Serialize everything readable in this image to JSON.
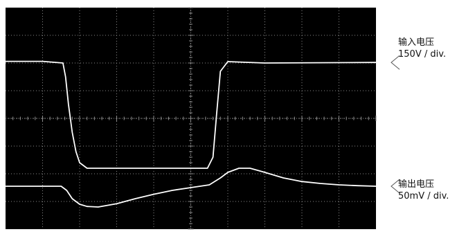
{
  "colors": {
    "screen": "#000000",
    "trace": "#ffffff",
    "grid": "#8c8c8c",
    "label_text": "#111111"
  },
  "chart_data": {
    "type": "line",
    "grid": true,
    "divisions": {
      "x": 10,
      "y": 8
    },
    "x_unit": "div",
    "y_unit": "div",
    "xlim": [
      0,
      10
    ],
    "ylim": [
      0,
      8
    ],
    "series": [
      {
        "name": "输入电压",
        "scale": "150V / div.",
        "x": [
          0,
          1.0,
          1.55,
          1.62,
          1.7,
          1.8,
          1.9,
          2.0,
          2.2,
          5.2,
          5.45,
          5.6,
          5.7,
          5.8,
          6.0,
          7.0,
          10
        ],
        "y": [
          6.06,
          6.06,
          6.0,
          5.5,
          4.5,
          3.5,
          2.8,
          2.4,
          2.2,
          2.2,
          2.2,
          2.6,
          4.2,
          5.7,
          6.05,
          6.0,
          6.02
        ]
      },
      {
        "name": "输出电压",
        "scale": "50mV / div.",
        "x": [
          0,
          1.5,
          1.65,
          1.8,
          2.0,
          2.2,
          2.5,
          3.0,
          3.5,
          4.0,
          4.5,
          5.0,
          5.5,
          5.8,
          6.0,
          6.3,
          6.6,
          7.0,
          7.5,
          8.0,
          8.5,
          9.0,
          9.5,
          10
        ],
        "y": [
          1.55,
          1.55,
          1.4,
          1.1,
          0.9,
          0.82,
          0.8,
          0.92,
          1.1,
          1.26,
          1.4,
          1.5,
          1.6,
          1.85,
          2.05,
          2.2,
          2.2,
          2.05,
          1.85,
          1.72,
          1.65,
          1.6,
          1.57,
          1.55
        ]
      }
    ]
  }
}
